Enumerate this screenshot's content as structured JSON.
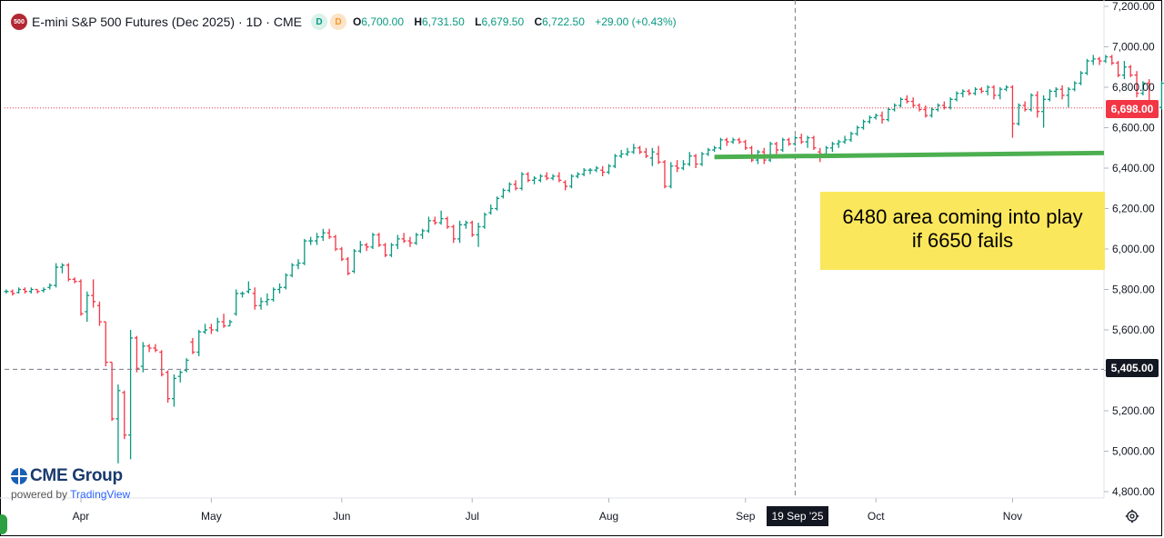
{
  "header": {
    "symbol_badge": "500",
    "title": "E-mini S&P 500 Futures (Dec 2025) · 1D · CME",
    "badge_d": "D",
    "badge_x": "D",
    "ohlc": {
      "o_key": "O",
      "o_val": "6,700.00",
      "h_key": "H",
      "h_val": "6,731.50",
      "l_key": "L",
      "l_val": "6,679.50",
      "c_key": "C",
      "c_val": "6,722.50",
      "change": "+29.00 (+0.43%)"
    }
  },
  "price_labels": {
    "last": "6,698.00",
    "crosshair": "5,405.00"
  },
  "time_label": "19 Sep '25",
  "note": {
    "line1": "6480 area coming into play",
    "line2": "if 6650 fails"
  },
  "logo": {
    "name": "CME Group",
    "powered": "powered by",
    "brand": "TradingView"
  },
  "colors": {
    "up": "#089981",
    "down": "#f23645",
    "support_line": "#4caf50",
    "note_bg": "#fbe75c"
  },
  "chart_data": {
    "type": "ohlc",
    "title": "E-mini S&P 500 Futures (Dec 2025) · 1D · CME",
    "ylim": [
      4700,
      7220
    ],
    "y_ticks": [
      4800,
      5000,
      5200,
      5400,
      5600,
      5800,
      6000,
      6200,
      6400,
      6600,
      6800,
      7000,
      7200
    ],
    "y_tick_labels": [
      "4,800.00",
      "5,000.00",
      "5,200.00",
      "5,400.00",
      "5,600.00",
      "5,800.00",
      "6,000.00",
      "6,200.00",
      "6,400.00",
      "6,600.00",
      "6,800.00",
      "7,000.00",
      "7,200.00"
    ],
    "x_tick_labels": [
      "Apr",
      "May",
      "Jun",
      "Jul",
      "Aug",
      "Sep",
      "Oct",
      "Nov"
    ],
    "last_price": 6698,
    "crosshair_price": 5405,
    "crosshair_date": "19 Sep '25",
    "support_level": {
      "from": 6455,
      "to": 6475,
      "label": "6480 area coming into play if 6650 fails"
    },
    "bars": [
      [
        5790,
        5800,
        5780,
        5790
      ],
      [
        5790,
        5800,
        5770,
        5780
      ],
      [
        5785,
        5810,
        5780,
        5800
      ],
      [
        5800,
        5810,
        5780,
        5790
      ],
      [
        5790,
        5810,
        5780,
        5800
      ],
      [
        5800,
        5800,
        5780,
        5790
      ],
      [
        5795,
        5810,
        5785,
        5800
      ],
      [
        5810,
        5830,
        5800,
        5820
      ],
      [
        5820,
        5930,
        5810,
        5910
      ],
      [
        5910,
        5930,
        5880,
        5920
      ],
      [
        5920,
        5930,
        5840,
        5850
      ],
      [
        5850,
        5860,
        5830,
        5840
      ],
      [
        5840,
        5850,
        5670,
        5680
      ],
      [
        5690,
        5790,
        5640,
        5770
      ],
      [
        5770,
        5850,
        5710,
        5740
      ],
      [
        5720,
        5740,
        5620,
        5640
      ],
      [
        5640,
        5640,
        5420,
        5440
      ],
      [
        5440,
        5440,
        5150,
        5160
      ],
      [
        5160,
        5330,
        4940,
        5300
      ],
      [
        5290,
        5300,
        5060,
        5080
      ],
      [
        5080,
        5600,
        4960,
        5560
      ],
      [
        5560,
        5570,
        5390,
        5410
      ],
      [
        5420,
        5540,
        5390,
        5520
      ],
      [
        5520,
        5530,
        5490,
        5510
      ],
      [
        5510,
        5530,
        5490,
        5500
      ],
      [
        5490,
        5500,
        5370,
        5380
      ],
      [
        5390,
        5400,
        5240,
        5260
      ],
      [
        5260,
        5380,
        5220,
        5360
      ],
      [
        5370,
        5400,
        5340,
        5390
      ],
      [
        5400,
        5460,
        5390,
        5450
      ],
      [
        5540,
        5560,
        5480,
        5490
      ],
      [
        5490,
        5600,
        5470,
        5590
      ],
      [
        5590,
        5630,
        5580,
        5600
      ],
      [
        5610,
        5630,
        5580,
        5600
      ],
      [
        5600,
        5660,
        5590,
        5640
      ],
      [
        5640,
        5680,
        5610,
        5620
      ],
      [
        5620,
        5650,
        5620,
        5640
      ],
      [
        5680,
        5800,
        5670,
        5780
      ],
      [
        5780,
        5790,
        5760,
        5780
      ],
      [
        5790,
        5840,
        5780,
        5800
      ],
      [
        5780,
        5810,
        5700,
        5720
      ],
      [
        5720,
        5760,
        5700,
        5740
      ],
      [
        5740,
        5780,
        5720,
        5750
      ],
      [
        5750,
        5810,
        5740,
        5800
      ],
      [
        5800,
        5830,
        5780,
        5810
      ],
      [
        5810,
        5880,
        5800,
        5870
      ],
      [
        5870,
        5930,
        5860,
        5920
      ],
      [
        5920,
        5950,
        5900,
        5930
      ],
      [
        5930,
        6050,
        5920,
        6040
      ],
      [
        6040,
        6060,
        6020,
        6040
      ],
      [
        6040,
        6080,
        6020,
        6060
      ],
      [
        6060,
        6100,
        6040,
        6080
      ],
      [
        6080,
        6100,
        6050,
        6060
      ],
      [
        6060,
        6070,
        5990,
        6000
      ],
      [
        6000,
        6010,
        5940,
        5950
      ],
      [
        5950,
        5960,
        5870,
        5880
      ],
      [
        5890,
        6000,
        5880,
        5990
      ],
      [
        5990,
        6040,
        5980,
        6020
      ],
      [
        6020,
        6030,
        5990,
        6010
      ],
      [
        6010,
        6080,
        6000,
        6070
      ],
      [
        6070,
        6080,
        6010,
        6020
      ],
      [
        6020,
        6030,
        5960,
        5970
      ],
      [
        5970,
        6030,
        5960,
        6020
      ],
      [
        6020,
        6070,
        6000,
        6050
      ],
      [
        6050,
        6080,
        6030,
        6040
      ],
      [
        6040,
        6060,
        6010,
        6030
      ],
      [
        6030,
        6080,
        6020,
        6070
      ],
      [
        6070,
        6100,
        6050,
        6090
      ],
      [
        6090,
        6160,
        6080,
        6140
      ],
      [
        6140,
        6160,
        6120,
        6130
      ],
      [
        6130,
        6190,
        6120,
        6150
      ],
      [
        6150,
        6160,
        6100,
        6110
      ],
      [
        6110,
        6120,
        6030,
        6050
      ],
      [
        6050,
        6140,
        6030,
        6120
      ],
      [
        6120,
        6140,
        6100,
        6130
      ],
      [
        6130,
        6140,
        6060,
        6070
      ],
      [
        6070,
        6130,
        6010,
        6110
      ],
      [
        6110,
        6180,
        6100,
        6170
      ],
      [
        6180,
        6220,
        6170,
        6200
      ],
      [
        6200,
        6260,
        6190,
        6250
      ],
      [
        6260,
        6300,
        6250,
        6290
      ],
      [
        6290,
        6330,
        6280,
        6320
      ],
      [
        6320,
        6340,
        6290,
        6300
      ],
      [
        6300,
        6380,
        6290,
        6370
      ],
      [
        6370,
        6380,
        6330,
        6340
      ],
      [
        6340,
        6360,
        6320,
        6350
      ],
      [
        6340,
        6370,
        6330,
        6360
      ],
      [
        6360,
        6380,
        6340,
        6350
      ],
      [
        6350,
        6370,
        6340,
        6360
      ],
      [
        6360,
        6380,
        6330,
        6340
      ],
      [
        6330,
        6340,
        6290,
        6310
      ],
      [
        6310,
        6370,
        6300,
        6360
      ],
      [
        6360,
        6380,
        6350,
        6370
      ],
      [
        6370,
        6400,
        6360,
        6390
      ],
      [
        6390,
        6400,
        6370,
        6390
      ],
      [
        6390,
        6410,
        6380,
        6400
      ],
      [
        6390,
        6410,
        6360,
        6380
      ],
      [
        6380,
        6420,
        6370,
        6410
      ],
      [
        6410,
        6470,
        6400,
        6460
      ],
      [
        6460,
        6490,
        6450,
        6470
      ],
      [
        6470,
        6500,
        6460,
        6480
      ],
      [
        6480,
        6520,
        6470,
        6500
      ],
      [
        6500,
        6510,
        6470,
        6480
      ],
      [
        6480,
        6500,
        6450,
        6460
      ],
      [
        6450,
        6500,
        6410,
        6480
      ],
      [
        6470,
        6510,
        6420,
        6430
      ],
      [
        6430,
        6440,
        6300,
        6310
      ],
      [
        6310,
        6430,
        6300,
        6410
      ],
      [
        6410,
        6440,
        6380,
        6400
      ],
      [
        6400,
        6440,
        6390,
        6420
      ],
      [
        6420,
        6480,
        6410,
        6460
      ],
      [
        6460,
        6470,
        6400,
        6420
      ],
      [
        6420,
        6480,
        6410,
        6470
      ],
      [
        6470,
        6500,
        6460,
        6490
      ],
      [
        6490,
        6510,
        6480,
        6500
      ],
      [
        6500,
        6550,
        6490,
        6540
      ],
      [
        6540,
        6550,
        6510,
        6530
      ],
      [
        6530,
        6550,
        6520,
        6540
      ],
      [
        6540,
        6550,
        6520,
        6530
      ],
      [
        6530,
        6540,
        6490,
        6500
      ],
      [
        6500,
        6510,
        6430,
        6440
      ],
      [
        6440,
        6490,
        6420,
        6480
      ],
      [
        6480,
        6500,
        6420,
        6440
      ],
      [
        6440,
        6530,
        6430,
        6520
      ],
      [
        6520,
        6530,
        6470,
        6490
      ],
      [
        6490,
        6550,
        6480,
        6540
      ],
      [
        6540,
        6550,
        6510,
        6520
      ],
      [
        6520,
        6560,
        6510,
        6550
      ],
      [
        6550,
        6570,
        6520,
        6530
      ],
      [
        6530,
        6560,
        6500,
        6550
      ],
      [
        6550,
        6560,
        6490,
        6500
      ],
      [
        6480,
        6500,
        6430,
        6470
      ],
      [
        6470,
        6510,
        6460,
        6500
      ],
      [
        6500,
        6530,
        6480,
        6520
      ],
      [
        6520,
        6540,
        6500,
        6530
      ],
      [
        6530,
        6560,
        6520,
        6540
      ],
      [
        6540,
        6580,
        6530,
        6570
      ],
      [
        6570,
        6610,
        6560,
        6600
      ],
      [
        6600,
        6640,
        6590,
        6630
      ],
      [
        6630,
        6660,
        6620,
        6650
      ],
      [
        6650,
        6670,
        6640,
        6660
      ],
      [
        6660,
        6680,
        6620,
        6640
      ],
      [
        6640,
        6700,
        6630,
        6690
      ],
      [
        6690,
        6720,
        6680,
        6710
      ],
      [
        6710,
        6750,
        6700,
        6740
      ],
      [
        6740,
        6760,
        6720,
        6730
      ],
      [
        6730,
        6750,
        6700,
        6710
      ],
      [
        6710,
        6720,
        6680,
        6690
      ],
      [
        6690,
        6710,
        6650,
        6660
      ],
      [
        6660,
        6700,
        6650,
        6690
      ],
      [
        6690,
        6720,
        6680,
        6710
      ],
      [
        6710,
        6730,
        6690,
        6700
      ],
      [
        6700,
        6750,
        6690,
        6740
      ],
      [
        6740,
        6780,
        6730,
        6770
      ],
      [
        6770,
        6790,
        6750,
        6780
      ],
      [
        6780,
        6790,
        6760,
        6770
      ],
      [
        6770,
        6800,
        6760,
        6790
      ],
      [
        6790,
        6800,
        6770,
        6780
      ],
      [
        6780,
        6810,
        6760,
        6800
      ],
      [
        6800,
        6810,
        6740,
        6760
      ],
      [
        6760,
        6800,
        6740,
        6790
      ],
      [
        6790,
        6810,
        6780,
        6800
      ],
      [
        6800,
        6810,
        6550,
        6620
      ],
      [
        6620,
        6720,
        6610,
        6710
      ],
      [
        6710,
        6730,
        6680,
        6690
      ],
      [
        6690,
        6770,
        6680,
        6760
      ],
      [
        6760,
        6780,
        6650,
        6680
      ],
      [
        6680,
        6760,
        6600,
        6740
      ],
      [
        6740,
        6790,
        6730,
        6780
      ],
      [
        6780,
        6800,
        6750,
        6790
      ],
      [
        6790,
        6810,
        6740,
        6760
      ],
      [
        6760,
        6800,
        6700,
        6790
      ],
      [
        6790,
        6830,
        6780,
        6820
      ],
      [
        6820,
        6880,
        6810,
        6870
      ],
      [
        6870,
        6940,
        6860,
        6930
      ],
      [
        6930,
        6960,
        6910,
        6940
      ],
      [
        6940,
        6950,
        6910,
        6930
      ],
      [
        6930,
        6960,
        6920,
        6950
      ],
      [
        6950,
        6960,
        6910,
        6920
      ],
      [
        6920,
        6930,
        6850,
        6860
      ],
      [
        6860,
        6930,
        6840,
        6900
      ],
      [
        6900,
        6910,
        6850,
        6860
      ],
      [
        6860,
        6880,
        6750,
        6770
      ],
      [
        6770,
        6830,
        6760,
        6820
      ],
      [
        6820,
        6840,
        6700,
        6720
      ],
      [
        6720,
        6730,
        6650,
        6700
      ],
      [
        6700,
        6830,
        6690,
        6820
      ],
      [
        6820,
        6880,
        6810,
        6870
      ],
      [
        6870,
        6880,
        6840,
        6860
      ],
      [
        6860,
        6890,
        6850,
        6880
      ],
      [
        6880,
        6890,
        6760,
        6780
      ],
      [
        6780,
        6790,
        6700,
        6720
      ],
      [
        6720,
        6730,
        6680,
        6698
      ]
    ]
  }
}
